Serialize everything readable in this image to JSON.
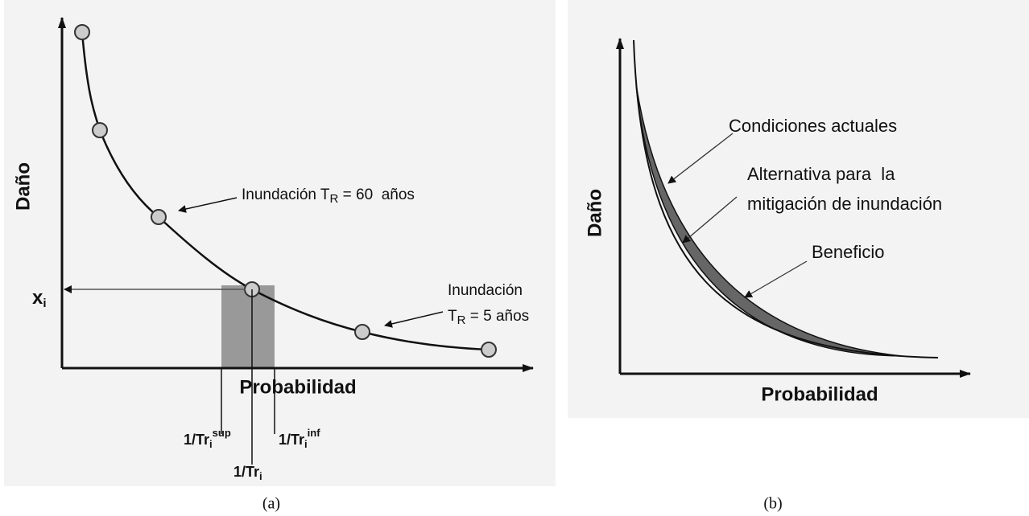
{
  "panel_a": {
    "y_axis_label": "Daño",
    "x_axis_label": "Probabilidad",
    "x_i": {
      "main": "x",
      "sub": "i"
    },
    "annotation_60": {
      "prefix": "Inundación T",
      "sub": "R",
      "suffix": " = 60  años"
    },
    "annotation_5": {
      "line1": "Inundación",
      "prefix": "T",
      "sub": "R",
      "suffix": " = 5 años"
    },
    "tick_sup": {
      "main": "1/Tr",
      "sub": "i",
      "sup": "sup"
    },
    "tick_inf": {
      "main": "1/Tr",
      "sub": "i",
      "sup": "inf"
    },
    "tick_mid": {
      "main": "1/Tr",
      "sub": "i"
    },
    "caption": "(a)"
  },
  "panel_b": {
    "y_axis_label": "Daño",
    "x_axis_label": "Probabilidad",
    "annotation_current": "Condiciones actuales",
    "annotation_alt_line1": "Alternativa para  la",
    "annotation_alt_line2": "mitigación de inundación",
    "annotation_benefit": "Beneficio",
    "caption": "(b)"
  }
}
